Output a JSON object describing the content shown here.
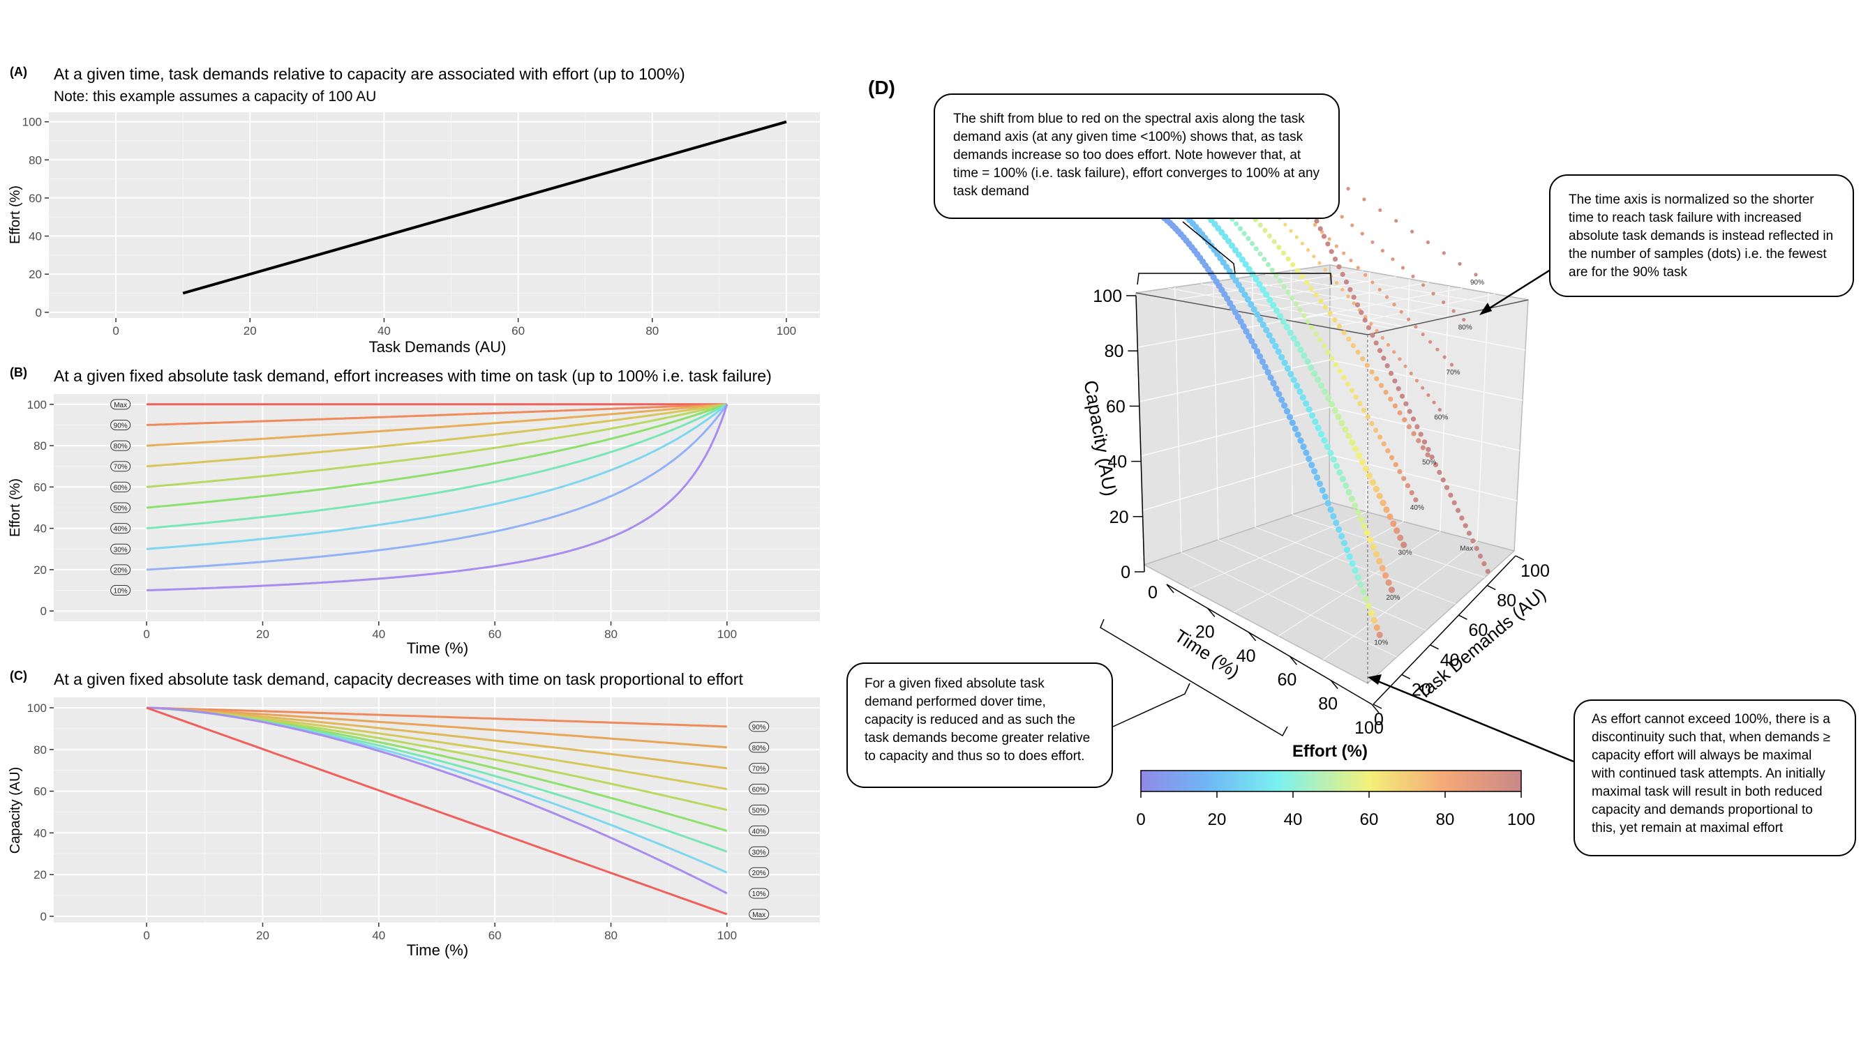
{
  "panels": {
    "a": {
      "tag": "(A)",
      "title": "At a given time, task demands relative to capacity are associated with effort (up to 100%)",
      "note": "Note: this example assumes a capacity of 100 AU"
    },
    "b": {
      "tag": "(B)",
      "title": "At a given fixed absolute task demand, effort increases with time on task (up to 100% i.e. task failure)"
    },
    "c": {
      "tag": "(C)",
      "title": "At a given fixed absolute task demand, capacity decreases with time on task proportional to effort"
    },
    "d": {
      "tag": "(D)",
      "z_label": "Capacity (AU)",
      "x_label": "Time (%)",
      "y_label": "Task Demands (AU)",
      "z_ticks": [
        "0",
        "20",
        "40",
        "60",
        "80",
        "100"
      ],
      "x_ticks": [
        "0",
        "20",
        "40",
        "60",
        "80",
        "100"
      ],
      "y_ticks": [
        "0",
        "20",
        "40",
        "60",
        "80",
        "100"
      ],
      "series_labels": [
        "90%",
        "80%",
        "70%",
        "60%",
        "50%",
        "40%",
        "30%",
        "20%",
        "10%",
        "Max"
      ],
      "colorbar": {
        "title": "Effort (%)",
        "ticks": [
          "0",
          "20",
          "40",
          "60",
          "80",
          "100"
        ]
      }
    }
  },
  "callouts": {
    "spectral": "The shift from blue to red on the spectral axis along the task demand axis (at any given time <100%) shows that, as task demands increase so too does effort. Note however that, at time = 100% (i.e. task failure), effort converges to 100% at any task demand",
    "time_axis": "The time axis is normalized so the shorter time to reach task failure with increased absolute task demands is instead reflected in the number of samples (dots) i.e. the fewest are for the 90% task",
    "fixed_demand": "For a given fixed absolute task demand performed dover time, capacity is reduced and as such the task demands become greater relative to capacity and thus so to does effort.",
    "discontinuity": "As effort cannot exceed 100%, there is a discontinuity such that, when demands ≥ capacity effort will always be maximal with continued task attempts. An initially maximal task will result in both reduced capacity and demands proportional to this, yet remain at maximal effort"
  },
  "chart_data": [
    {
      "id": "A",
      "type": "line",
      "title": "At a given time, task demands relative to capacity are associated with effort (up to 100%)",
      "subtitle": "Note: this example assumes a capacity of 100 AU",
      "xlabel": "Task Demands (AU)",
      "ylabel": "Effort (%)",
      "xlim": [
        -10,
        105
      ],
      "ylim": [
        -3,
        105
      ],
      "x_ticks": [
        0,
        20,
        40,
        60,
        80,
        100
      ],
      "y_ticks": [
        0,
        20,
        40,
        60,
        80,
        100
      ],
      "grid": true,
      "series": [
        {
          "color": "#000000",
          "x": [
            10,
            100
          ],
          "y": [
            10,
            100
          ]
        }
      ]
    },
    {
      "id": "B",
      "type": "line",
      "title": "At a given fixed absolute task demand, effort increases with time on task (up to 100% i.e. task failure)",
      "xlabel": "Time (%)",
      "ylabel": "Effort (%)",
      "xlim": [
        -16,
        116
      ],
      "ylim": [
        -5,
        105
      ],
      "x_ticks": [
        0,
        20,
        40,
        60,
        80,
        100
      ],
      "y_ticks": [
        0,
        20,
        40,
        60,
        80,
        100
      ],
      "grid": true,
      "legend_position": "left",
      "series": [
        {
          "name": "Max",
          "demand": 100,
          "color": "#f0605a"
        },
        {
          "name": "90%",
          "demand": 90,
          "color": "#ee8a5c"
        },
        {
          "name": "80%",
          "demand": 80,
          "color": "#e8ad58"
        },
        {
          "name": "70%",
          "demand": 70,
          "color": "#d9c65a"
        },
        {
          "name": "60%",
          "demand": 60,
          "color": "#b7d861"
        },
        {
          "name": "50%",
          "demand": 50,
          "color": "#8ee06e"
        },
        {
          "name": "40%",
          "demand": 40,
          "color": "#79e6b8"
        },
        {
          "name": "30%",
          "demand": 30,
          "color": "#7fd6f0"
        },
        {
          "name": "20%",
          "demand": 20,
          "color": "#93b2f6"
        },
        {
          "name": "10%",
          "demand": 10,
          "color": "#a98cf0"
        }
      ]
    },
    {
      "id": "C",
      "type": "line",
      "title": "At a given fixed absolute task demand, capacity decreases with time on task proportional to effort",
      "xlabel": "Time (%)",
      "ylabel": "Capacity (AU)",
      "xlim": [
        -16,
        116
      ],
      "ylim": [
        -3,
        105
      ],
      "x_ticks": [
        0,
        20,
        40,
        60,
        80,
        100
      ],
      "y_ticks": [
        0,
        20,
        40,
        60,
        80,
        100
      ],
      "grid": true,
      "legend_position": "right",
      "series": [
        {
          "name": "90%",
          "color": "#ee8a5c",
          "end": 91
        },
        {
          "name": "80%",
          "color": "#e8a558",
          "end": 81
        },
        {
          "name": "70%",
          "color": "#e0b85a",
          "end": 71
        },
        {
          "name": "60%",
          "color": "#d2cb5c",
          "end": 61
        },
        {
          "name": "50%",
          "color": "#b9d861",
          "end": 51
        },
        {
          "name": "40%",
          "color": "#90e06e",
          "end": 41
        },
        {
          "name": "30%",
          "color": "#79e6b8",
          "end": 31
        },
        {
          "name": "20%",
          "color": "#7fd6f0",
          "end": 21
        },
        {
          "name": "10%",
          "color": "#a98cf0",
          "end": 11
        },
        {
          "name": "Max",
          "color": "#f0605a",
          "end": 1
        }
      ]
    },
    {
      "id": "D",
      "type": "scatter",
      "xlabel": "Time (%)",
      "ylabel": "Task Demands (AU)",
      "zlabel": "Capacity (AU)",
      "xlim": [
        0,
        100
      ],
      "ylim": [
        0,
        100
      ],
      "zlim": [
        0,
        100
      ],
      "colorbar_label": "Effort (%)",
      "colorbar_range": [
        0,
        100
      ],
      "series": [
        {
          "name": "Max",
          "demand": 100,
          "end": 1
        },
        {
          "name": "90%",
          "demand": 90,
          "end": 91
        },
        {
          "name": "80%",
          "demand": 80,
          "end": 81
        },
        {
          "name": "70%",
          "demand": 70,
          "end": 71
        },
        {
          "name": "60%",
          "demand": 60,
          "end": 61
        },
        {
          "name": "50%",
          "demand": 50,
          "end": 51
        },
        {
          "name": "40%",
          "demand": 40,
          "end": 41
        },
        {
          "name": "30%",
          "demand": 30,
          "end": 31
        },
        {
          "name": "20%",
          "demand": 20,
          "end": 21
        },
        {
          "name": "10%",
          "demand": 10,
          "end": 11
        }
      ]
    }
  ]
}
